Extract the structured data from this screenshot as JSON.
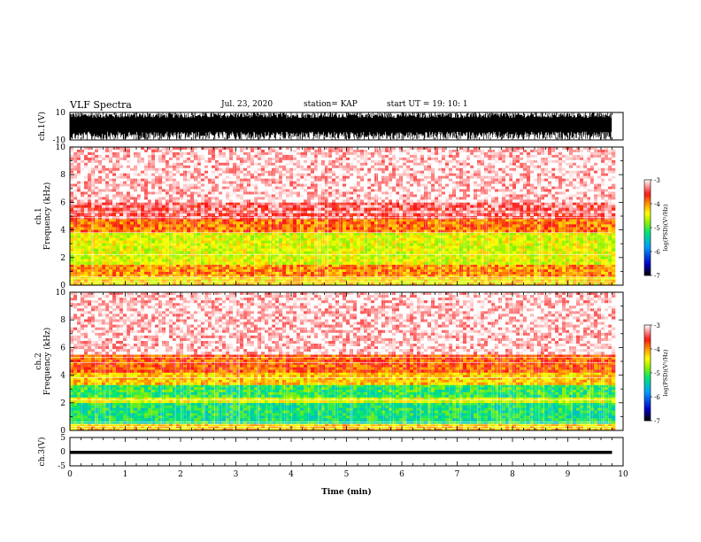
{
  "header": {
    "title": "VLF Spectra",
    "date": "Jul. 23, 2020",
    "station": "station= KAP",
    "start": "start UT =   19: 10: 1"
  },
  "chart_data": [
    {
      "type": "line",
      "name": "ch1-waveform",
      "ylabel": "ch.1(V)",
      "ylim": [
        -10,
        10
      ],
      "yticks": [
        10,
        -10
      ],
      "xlim": [
        0,
        10
      ],
      "description_values": "dense waveform filling -10..10 V from t=0 to ~9.8 min"
    },
    {
      "type": "heatmap",
      "name": "ch1-spectrogram",
      "ylabel_top": "ch.1",
      "ylabel": "Frequency (kHz)",
      "ylim": [
        0,
        10
      ],
      "yticks": [
        0,
        2,
        4,
        6,
        8,
        10
      ],
      "xlim": [
        0,
        10
      ],
      "data_end": 9.8,
      "bands": [
        {
          "f0": 0.0,
          "f1": 0.6,
          "level": -4.3
        },
        {
          "f0": 0.6,
          "f1": 1.5,
          "level": -4.0
        },
        {
          "f0": 1.5,
          "f1": 3.8,
          "level": -4.5
        },
        {
          "f0": 3.8,
          "f1": 4.8,
          "level": -3.9
        },
        {
          "f0": 4.8,
          "f1": 6.0,
          "level": -3.4
        },
        {
          "f0": 6.0,
          "f1": 10.0,
          "level": -3.1
        }
      ],
      "colorbar": {
        "label": "log(PSD)(V²/Hz)",
        "ticks": [
          -3,
          -4,
          -5,
          -6,
          -7
        ],
        "range": [
          -7,
          -3
        ]
      }
    },
    {
      "type": "heatmap",
      "name": "ch2-spectrogram",
      "ylabel_top": "ch.2",
      "ylabel": "Frequency (kHz)",
      "ylim": [
        0,
        10
      ],
      "yticks": [
        0,
        2,
        4,
        6,
        8,
        10
      ],
      "xlim": [
        0,
        10
      ],
      "data_end": 9.8,
      "bands": [
        {
          "f0": 0.0,
          "f1": 0.5,
          "level": -4.2
        },
        {
          "f0": 0.5,
          "f1": 2.0,
          "level": -5.2
        },
        {
          "f0": 2.0,
          "f1": 2.4,
          "level": -4.5
        },
        {
          "f0": 2.4,
          "f1": 3.3,
          "level": -5.1
        },
        {
          "f0": 3.3,
          "f1": 4.2,
          "level": -4.2
        },
        {
          "f0": 4.2,
          "f1": 5.5,
          "level": -3.8
        },
        {
          "f0": 5.5,
          "f1": 10.0,
          "level": -3.1
        }
      ],
      "colorbar": {
        "label": "log(PSD)(V²/Hz)",
        "ticks": [
          -3,
          -4,
          -5,
          -6,
          -7
        ],
        "range": [
          -7,
          -3
        ]
      }
    },
    {
      "type": "line",
      "name": "ch3-waveform",
      "ylabel": "ch.3(V)",
      "ylim": [
        -5,
        5
      ],
      "yticks": [
        5,
        0,
        -5
      ],
      "xlim": [
        0,
        10
      ],
      "xlabel": "Time (min)",
      "xticks": [
        0,
        1,
        2,
        3,
        4,
        5,
        6,
        7,
        8,
        9,
        10
      ],
      "values_range": [
        -0.8,
        0.3
      ]
    }
  ],
  "colors": {
    "waveform": "#000000",
    "background": "#ffffff"
  }
}
